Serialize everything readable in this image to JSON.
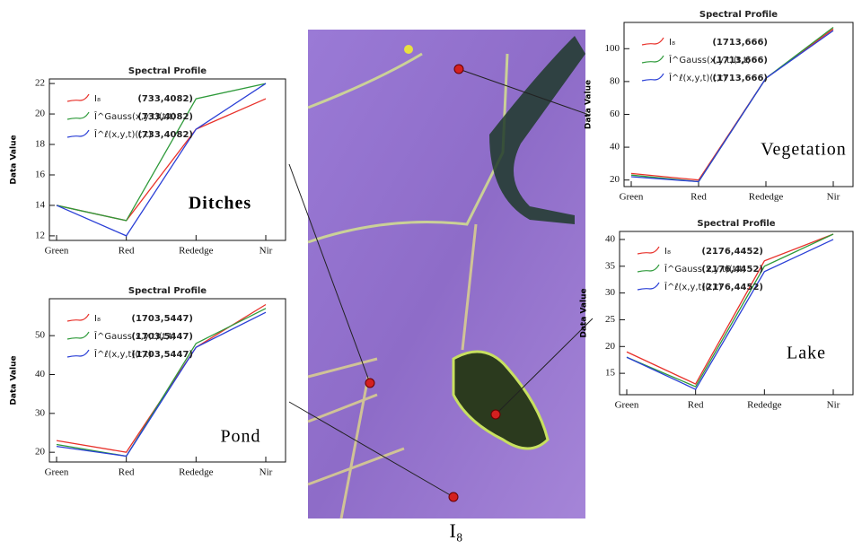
{
  "chart_data": [
    {
      "type": "line",
      "title": "Spectral Profile",
      "y_label": "Data Value",
      "annotation": "Ditches",
      "point": "(733,4082)",
      "categories": [
        "Green",
        "Red",
        "Rededge",
        "Nir"
      ],
      "series": [
        {
          "name": "I₈",
          "color": "#e8312a",
          "values": [
            14,
            13,
            19,
            21
          ]
        },
        {
          "name": "Î^Gauss(x,y,t)(t,t)",
          "color": "#2e9a3a",
          "values": [
            14,
            13,
            21,
            22
          ]
        },
        {
          "name": "Î^ℓ(x,y,t)(t,t)",
          "color": "#2a3fd6",
          "values": [
            14,
            12,
            19,
            22
          ]
        }
      ],
      "ylim": [
        11.7,
        22.3
      ],
      "yticks": [
        12,
        14,
        16,
        18,
        20,
        22
      ]
    },
    {
      "type": "line",
      "title": "Spectral Profile",
      "y_label": "Data Value",
      "annotation": "Pond",
      "point": "(1703,5447)",
      "categories": [
        "Green",
        "Red",
        "Rededge",
        "Nir"
      ],
      "series": [
        {
          "name": "I₈",
          "color": "#e8312a",
          "values": [
            23,
            20,
            47,
            58
          ]
        },
        {
          "name": "Î^Gauss(x,y,t)(t,t)",
          "color": "#2e9a3a",
          "values": [
            22,
            19,
            48,
            57
          ]
        },
        {
          "name": "Î^ℓ(x,y,t)(t,t)",
          "color": "#2a3fd6",
          "values": [
            21.5,
            19,
            47,
            56
          ]
        }
      ],
      "ylim": [
        17.5,
        59.5
      ],
      "yticks": [
        20,
        30,
        40,
        50
      ]
    },
    {
      "type": "line",
      "title": "Spectral Profile",
      "y_label": "Data Value",
      "annotation": "Vegetation",
      "point": "(1713,666)",
      "categories": [
        "Green",
        "Red",
        "Rededge",
        "Nir"
      ],
      "series": [
        {
          "name": "I₈",
          "color": "#e8312a",
          "values": [
            24,
            20,
            82,
            112
          ]
        },
        {
          "name": "Î^Gauss(x,y,t)(t,t)",
          "color": "#2e9a3a",
          "values": [
            23,
            19,
            82,
            113
          ]
        },
        {
          "name": "Î^ℓ(x,y,t)(t,t)",
          "color": "#2a3fd6",
          "values": [
            22,
            19,
            82,
            111
          ]
        }
      ],
      "ylim": [
        16,
        116
      ],
      "yticks": [
        20,
        40,
        60,
        80,
        100
      ]
    },
    {
      "type": "line",
      "title": "Spectral Profile",
      "y_label": "Data Value",
      "annotation": "Lake",
      "point": "(2176,4452)",
      "categories": [
        "Green",
        "Red",
        "Rededge",
        "Nir"
      ],
      "series": [
        {
          "name": "I₈",
          "color": "#e8312a",
          "values": [
            19,
            13,
            36,
            41
          ]
        },
        {
          "name": "Î^Gauss(x,y,t)(t,t)",
          "color": "#2e9a3a",
          "values": [
            18,
            12.5,
            35,
            41
          ]
        },
        {
          "name": "Î^ℓ(x,y,t)(t,t)",
          "color": "#2a3fd6",
          "values": [
            18,
            12,
            34,
            40
          ]
        }
      ],
      "ylim": [
        11,
        41.5
      ],
      "yticks": [
        15,
        20,
        25,
        30,
        35,
        40
      ]
    }
  ],
  "caption": "I₈"
}
